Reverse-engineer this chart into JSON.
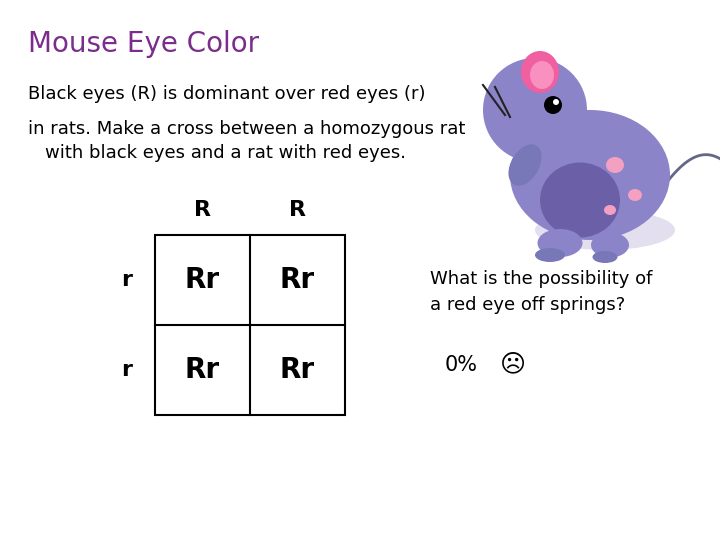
{
  "title": "Mouse Eye Color",
  "title_color": "#7B2D8B",
  "title_fontsize": 20,
  "line1": "Black eyes (R) is dominant over red eyes (r)",
  "line2": "in rats. Make a cross between a homozygous rat",
  "line3": "   with black eyes and a rat with red eyes.",
  "text_fontsize": 13,
  "col_labels": [
    "R",
    "R"
  ],
  "row_labels": [
    "r",
    "r"
  ],
  "cells": [
    [
      "Rr",
      "Rr"
    ],
    [
      "Rr",
      "Rr"
    ]
  ],
  "question_text": "What is the possibility of\na red eye off springs?",
  "answer_text": "0%",
  "background_color": "#ffffff",
  "mouse_body_color": "#8B84C8",
  "mouse_belly_color": "#A89ED8",
  "mouse_ear_color": "#F060A0",
  "mouse_spot_color": "#F4A0C0",
  "mouse_shadow_color": "#C8C0E0",
  "mouse_head_color": "#8B84C8",
  "mouse_arm_color": "#7878B8",
  "mouse_tail_color": "#666688",
  "mouse_whisker_color": "#333333"
}
